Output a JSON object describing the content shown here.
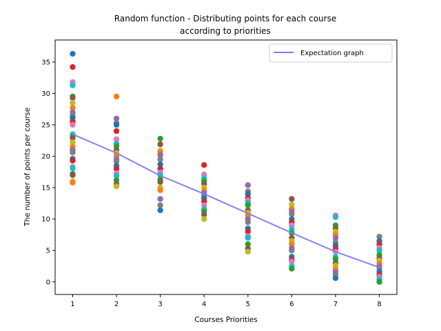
{
  "chart_data": {
    "type": "scatter",
    "title": "Random function - Distributing points for each course",
    "subtitle": "according to priorities",
    "xlabel": "Courses Priorities",
    "ylabel": "The number of points per course",
    "xlim": [
      0.6,
      8.4
    ],
    "ylim": [
      -2,
      38.5
    ],
    "xticks": [
      1,
      2,
      3,
      4,
      5,
      6,
      7,
      8
    ],
    "yticks": [
      0,
      5,
      10,
      15,
      20,
      25,
      30,
      35
    ],
    "grid": false,
    "legend": {
      "position": "top-right",
      "entries": [
        {
          "label": "Expectation graph",
          "color": "#7b7bf5"
        }
      ]
    },
    "expectation_line": {
      "name": "Expectation graph",
      "color": "#7b7bf5",
      "x": [
        1,
        2,
        3,
        4,
        5,
        6,
        7,
        8
      ],
      "y": [
        23.5,
        20.5,
        16.9,
        14.0,
        10.9,
        7.8,
        4.8,
        2.3
      ]
    },
    "marker_colors": [
      "#1f77b4",
      "#ff7f0e",
      "#2ca02c",
      "#d62728",
      "#9467bd",
      "#8c564b",
      "#e377c2",
      "#7f7f7f",
      "#bcbd22",
      "#17becf"
    ],
    "points": [
      {
        "x": 1,
        "y": [
          36.3,
          34.2,
          31.8,
          31.3,
          29.5,
          29.3,
          28.5,
          27.7,
          27.0,
          26.5,
          26.1,
          25.5,
          25.0,
          23.5,
          23.1,
          22.9,
          22.2,
          21.5,
          21.0,
          20.6,
          19.6,
          19.3,
          18.3,
          18.1,
          17.2,
          17.0,
          16.0,
          15.8
        ]
      },
      {
        "x": 2,
        "y": [
          29.5,
          26.0,
          25.3,
          25.0,
          24.0,
          22.7,
          22.0,
          21.6,
          21.0,
          20.5,
          20.0,
          19.5,
          19.2,
          18.5,
          18.0,
          17.3,
          16.9,
          16.2,
          15.6,
          15.2
        ]
      },
      {
        "x": 3,
        "y": [
          22.8,
          21.9,
          20.9,
          20.6,
          20.2,
          19.5,
          18.7,
          18.0,
          17.4,
          17.0,
          16.3,
          15.9,
          15.0,
          14.6,
          13.2,
          12.2,
          11.4
        ]
      },
      {
        "x": 4,
        "y": [
          18.6,
          17.1,
          16.5,
          16.0,
          15.6,
          15.0,
          14.5,
          14.1,
          13.7,
          13.3,
          12.8,
          12.2,
          11.6,
          11.2,
          10.7,
          10.0
        ]
      },
      {
        "x": 5,
        "y": [
          15.4,
          14.4,
          14.0,
          13.4,
          13.0,
          12.6,
          12.2,
          11.4,
          11.0,
          10.6,
          10.0,
          9.5,
          8.5,
          8.0,
          7.3,
          7.0,
          6.0,
          5.3,
          4.8
        ]
      },
      {
        "x": 6,
        "y": [
          13.2,
          12.3,
          11.6,
          11.2,
          10.8,
          10.0,
          9.5,
          9.0,
          8.4,
          7.8,
          7.0,
          6.5,
          6.0,
          5.4,
          5.0,
          4.0,
          3.5,
          3.2,
          2.5,
          2.1
        ]
      },
      {
        "x": 7,
        "y": [
          10.6,
          10.3,
          9.0,
          8.5,
          8.0,
          7.5,
          7.0,
          6.3,
          5.8,
          5.3,
          4.8,
          4.0,
          3.6,
          3.0,
          2.6,
          2.0,
          1.6,
          1.2,
          0.6
        ]
      },
      {
        "x": 8,
        "y": [
          7.2,
          6.5,
          6.0,
          5.4,
          5.0,
          4.3,
          3.8,
          3.4,
          2.9,
          2.5,
          2.1,
          1.6,
          1.1,
          0.8,
          0.4,
          0.0
        ]
      }
    ]
  }
}
